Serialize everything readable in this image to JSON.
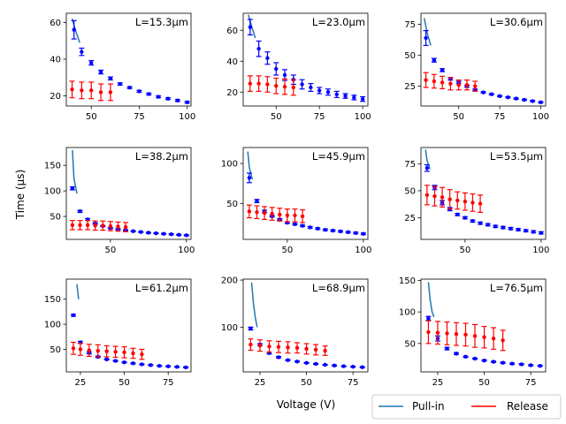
{
  "figure": {
    "ylabel": "Time (μs)",
    "xlabel": "Voltage (V)",
    "legend": {
      "placement": "bottom-right",
      "items": [
        {
          "label": "Pull-in",
          "color": "#1f77b4"
        },
        {
          "label": "Release",
          "color": "#ff0000"
        }
      ]
    }
  },
  "chart_data": [
    {
      "type": "line",
      "title": "L=15.3μm",
      "xlim": [
        37,
        102
      ],
      "ylim": [
        14.5,
        65
      ],
      "xticks": [
        50,
        75,
        100
      ],
      "yticks": [
        20,
        40,
        60
      ],
      "series": [
        {
          "name": "Pull-in",
          "kind": "line",
          "color": "#1f77b4",
          "x": [
            40,
            42,
            44
          ],
          "y": [
            62,
            55,
            49
          ]
        },
        {
          "name": "Pull-in",
          "kind": "errorbar",
          "color": "#0000ff",
          "x": [
            41,
            45,
            50,
            55,
            60,
            65,
            70,
            75,
            80,
            85,
            90,
            95,
            100
          ],
          "y": [
            56,
            44,
            38,
            33,
            29.5,
            26.5,
            24.5,
            22.5,
            21,
            19.5,
            18.5,
            17.5,
            16.5
          ],
          "err": [
            5,
            2,
            1.2,
            1,
            0.8,
            0.6,
            0.5,
            0.5,
            0.5,
            0.5,
            0.5,
            0.5,
            0.5
          ]
        },
        {
          "name": "Release",
          "kind": "errorbar",
          "color": "#ff0000",
          "x": [
            40,
            45,
            50,
            55,
            60
          ],
          "y": [
            23.5,
            23,
            23,
            22,
            22
          ],
          "err": [
            4.5,
            4.5,
            4.5,
            4.5,
            4.5
          ]
        }
      ]
    },
    {
      "type": "line",
      "title": "L=23.0μm",
      "xlim": [
        31,
        103
      ],
      "ylim": [
        11,
        71
      ],
      "xticks": [
        50,
        75,
        100
      ],
      "yticks": [
        20,
        40,
        60
      ],
      "series": [
        {
          "name": "Pull-in",
          "kind": "line",
          "color": "#1f77b4",
          "x": [
            34,
            36,
            38
          ],
          "y": [
            70,
            62,
            55
          ]
        },
        {
          "name": "Pull-in",
          "kind": "errorbar",
          "color": "#0000ff",
          "x": [
            35,
            40,
            45,
            50,
            55,
            60,
            65,
            70,
            75,
            80,
            85,
            90,
            95,
            100
          ],
          "y": [
            62,
            48,
            42,
            35,
            31,
            28,
            25,
            23,
            21,
            20,
            18.5,
            17.5,
            16.5,
            15.5
          ],
          "err": [
            5,
            5,
            4,
            4,
            3.5,
            3,
            3,
            2.5,
            2,
            2,
            2,
            1.5,
            1.5,
            1.5
          ]
        },
        {
          "name": "Release",
          "kind": "errorbar",
          "color": "#ff0000",
          "x": [
            35,
            40,
            45,
            50,
            55,
            60
          ],
          "y": [
            25.5,
            25.5,
            25,
            24,
            23.5,
            23
          ],
          "err": [
            5,
            5,
            5,
            5,
            5,
            5
          ]
        }
      ]
    },
    {
      "type": "line",
      "title": "L=30.6μm",
      "xlim": [
        27,
        103
      ],
      "ylim": [
        9,
        84
      ],
      "xticks": [
        50,
        75,
        100
      ],
      "yticks": [
        25,
        50,
        75
      ],
      "series": [
        {
          "name": "Pull-in",
          "kind": "line",
          "color": "#1f77b4",
          "x": [
            29,
            31,
            33
          ],
          "y": [
            80,
            67,
            58
          ]
        },
        {
          "name": "Pull-in",
          "kind": "errorbar",
          "color": "#0000ff",
          "x": [
            30,
            35,
            40,
            45,
            50,
            55,
            60,
            65,
            70,
            75,
            80,
            85,
            90,
            95,
            100
          ],
          "y": [
            64,
            46,
            38,
            31,
            28,
            25,
            22,
            20,
            18.5,
            17,
            16,
            15,
            14,
            13,
            12
          ],
          "err": [
            6,
            1.5,
            1.2,
            1,
            1,
            0.8,
            0.7,
            0.6,
            0.5,
            0.5,
            0.5,
            0.5,
            0.5,
            0.5,
            0.5
          ]
        },
        {
          "name": "Release",
          "kind": "errorbar",
          "color": "#ff0000",
          "x": [
            30,
            35,
            40,
            45,
            50,
            55,
            60
          ],
          "y": [
            30,
            29,
            28,
            27,
            26,
            26,
            25
          ],
          "err": [
            6,
            5.5,
            5,
            5,
            4,
            4,
            4
          ]
        }
      ]
    },
    {
      "type": "line",
      "title": "L=38.2μm",
      "xlim": [
        21,
        103
      ],
      "ylim": [
        5,
        185
      ],
      "xticks": [
        50,
        100
      ],
      "yticks": [
        50,
        100,
        150
      ],
      "series": [
        {
          "name": "Pull-in",
          "kind": "line",
          "color": "#1f77b4",
          "x": [
            25,
            26,
            28
          ],
          "y": [
            180,
            125,
            95
          ]
        },
        {
          "name": "Pull-in",
          "kind": "errorbar",
          "color": "#0000ff",
          "x": [
            25,
            30,
            35,
            40,
            45,
            50,
            55,
            60,
            65,
            70,
            75,
            80,
            85,
            90,
            95,
            100
          ],
          "y": [
            105,
            60,
            44,
            36,
            31,
            27,
            25,
            23,
            21,
            19.5,
            18,
            17,
            16,
            15,
            14,
            13
          ],
          "err": [
            3,
            2,
            2,
            1.5,
            1,
            1,
            1,
            1,
            1,
            1,
            1,
            1,
            1,
            1,
            1,
            1
          ]
        },
        {
          "name": "Release",
          "kind": "errorbar",
          "color": "#ff0000",
          "x": [
            25,
            30,
            35,
            40,
            45,
            50,
            55,
            60
          ],
          "y": [
            33,
            33,
            33,
            32,
            32,
            31,
            30,
            29
          ],
          "err": [
            9,
            9,
            9,
            9,
            9,
            9,
            9,
            9
          ]
        }
      ]
    },
    {
      "type": "line",
      "title": "L=45.9μm",
      "xlim": [
        21,
        103
      ],
      "ylim": [
        5,
        120
      ],
      "xticks": [
        50,
        100
      ],
      "yticks": [
        50,
        100
      ],
      "series": [
        {
          "name": "Pull-in",
          "kind": "line",
          "color": "#1f77b4",
          "x": [
            24,
            25,
            27
          ],
          "y": [
            115,
            95,
            80
          ]
        },
        {
          "name": "Pull-in",
          "kind": "errorbar",
          "color": "#0000ff",
          "x": [
            25,
            30,
            35,
            40,
            45,
            50,
            55,
            60,
            65,
            70,
            75,
            80,
            85,
            90,
            95,
            100
          ],
          "y": [
            82,
            53,
            40,
            34,
            30,
            26,
            24,
            22,
            20,
            18.5,
            17,
            16,
            15,
            14,
            13,
            12
          ],
          "err": [
            6,
            2,
            1.5,
            1,
            1,
            1,
            1,
            1,
            1,
            1,
            1,
            1,
            1,
            1,
            1,
            1
          ]
        },
        {
          "name": "Release",
          "kind": "errorbar",
          "color": "#ff0000",
          "x": [
            25,
            30,
            35,
            40,
            45,
            50,
            55,
            60
          ],
          "y": [
            40,
            39,
            38,
            37,
            36,
            35,
            35,
            34
          ],
          "err": [
            8,
            8,
            8,
            8,
            8,
            8,
            8,
            8
          ]
        }
      ]
    },
    {
      "type": "line",
      "title": "L=53.5μm",
      "xlim": [
        21,
        103
      ],
      "ylim": [
        5,
        90
      ],
      "xticks": [
        50,
        100
      ],
      "yticks": [
        25,
        50,
        75
      ],
      "series": [
        {
          "name": "Pull-in",
          "kind": "line",
          "color": "#1f77b4",
          "x": [
            24,
            25,
            27
          ],
          "y": [
            88,
            78,
            70
          ]
        },
        {
          "name": "Pull-in",
          "kind": "errorbar",
          "color": "#0000ff",
          "x": [
            25,
            30,
            35,
            40,
            45,
            50,
            55,
            60,
            65,
            70,
            75,
            80,
            85,
            90,
            95,
            100
          ],
          "y": [
            71,
            53,
            39,
            33,
            28,
            25,
            22,
            20,
            18.5,
            17,
            16,
            15,
            14,
            13,
            12,
            11
          ],
          "err": [
            3,
            2,
            2,
            1.5,
            1,
            1,
            1,
            1,
            1,
            1,
            1,
            1,
            1,
            1,
            1,
            1
          ]
        },
        {
          "name": "Release",
          "kind": "errorbar",
          "color": "#ff0000",
          "x": [
            25,
            30,
            35,
            40,
            45,
            50,
            55,
            60
          ],
          "y": [
            46,
            45,
            44,
            42,
            41,
            40,
            39,
            38
          ],
          "err": [
            9,
            9,
            9,
            9,
            8,
            8,
            8,
            8
          ]
        }
      ]
    },
    {
      "type": "line",
      "title": "L=61.2μm",
      "xlim": [
        17,
        88
      ],
      "ylim": [
        5,
        190
      ],
      "xticks": [
        25,
        50,
        75
      ],
      "yticks": [
        50,
        100,
        150
      ],
      "series": [
        {
          "name": "Pull-in",
          "kind": "line",
          "color": "#1f77b4",
          "x": [
            23,
            23.5,
            24
          ],
          "y": [
            180,
            165,
            150
          ]
        },
        {
          "name": "Pull-in",
          "kind": "errorbar",
          "color": "#0000ff",
          "x": [
            21,
            25,
            30,
            35,
            40,
            45,
            50,
            55,
            60,
            65,
            70,
            75,
            80,
            85
          ],
          "y": [
            118,
            64,
            43,
            35,
            30,
            27,
            24,
            22,
            20,
            18.5,
            17,
            16,
            15,
            14
          ],
          "err": [
            2,
            2,
            2,
            1.5,
            1,
            1,
            1,
            1,
            1,
            1,
            1,
            1,
            1,
            1
          ]
        },
        {
          "name": "Release",
          "kind": "errorbar",
          "color": "#ff0000",
          "x": [
            21,
            25,
            30,
            35,
            40,
            45,
            50,
            55,
            60
          ],
          "y": [
            52,
            50,
            48,
            47,
            46,
            45,
            44,
            42,
            40
          ],
          "err": [
            12,
            12,
            12,
            12,
            11,
            11,
            11,
            10,
            10
          ]
        }
      ]
    },
    {
      "type": "line",
      "title": "L=68.9μm",
      "xlim": [
        16,
        83
      ],
      "ylim": [
        5,
        202
      ],
      "xticks": [
        25,
        50,
        75
      ],
      "yticks": [
        100,
        200
      ],
      "series": [
        {
          "name": "Pull-in",
          "kind": "line",
          "color": "#1f77b4",
          "x": [
            20.5,
            21.5,
            22.5,
            23.5
          ],
          "y": [
            195,
            150,
            120,
            100
          ]
        },
        {
          "name": "Pull-in",
          "kind": "errorbar",
          "color": "#0000ff",
          "x": [
            20,
            25,
            30,
            35,
            40,
            45,
            50,
            55,
            60,
            65,
            70,
            75,
            80
          ],
          "y": [
            97,
            63,
            45,
            36,
            30,
            27,
            24,
            22,
            20,
            18.5,
            17,
            16,
            15
          ],
          "err": [
            3,
            2,
            2,
            1.5,
            1,
            1,
            1,
            1,
            1,
            1,
            1,
            1,
            1
          ]
        },
        {
          "name": "Release",
          "kind": "errorbar",
          "color": "#ff0000",
          "x": [
            20,
            25,
            30,
            35,
            40,
            45,
            50,
            55,
            60
          ],
          "y": [
            63,
            61,
            59,
            58,
            57,
            56,
            54,
            52,
            50
          ],
          "err": [
            12,
            12,
            12,
            12,
            12,
            11,
            11,
            11,
            10
          ]
        }
      ]
    },
    {
      "type": "line",
      "title": "L=76.5μm",
      "xlim": [
        16,
        83
      ],
      "ylim": [
        5,
        152
      ],
      "xticks": [
        25,
        50,
        75
      ],
      "yticks": [
        50,
        100,
        150
      ],
      "series": [
        {
          "name": "Pull-in",
          "kind": "line",
          "color": "#1f77b4",
          "x": [
            20,
            21,
            22,
            23
          ],
          "y": [
            147,
            118,
            100,
            92
          ]
        },
        {
          "name": "Pull-in",
          "kind": "errorbar",
          "color": "#0000ff",
          "x": [
            20,
            25,
            30,
            35,
            40,
            45,
            50,
            55,
            60,
            65,
            70,
            75,
            80
          ],
          "y": [
            90,
            58,
            42,
            34,
            29,
            26,
            23,
            21,
            19.5,
            18,
            17,
            15.5,
            14.5
          ],
          "err": [
            3,
            4,
            2,
            1.5,
            1,
            1,
            1,
            1,
            1,
            1,
            1,
            1,
            1
          ]
        },
        {
          "name": "Release",
          "kind": "errorbar",
          "color": "#ff0000",
          "x": [
            20,
            25,
            30,
            35,
            40,
            45,
            50,
            55,
            60
          ],
          "y": [
            68,
            67,
            66,
            65,
            64,
            62,
            60,
            58,
            55
          ],
          "err": [
            18,
            18,
            18,
            18,
            18,
            18,
            17,
            17,
            16
          ]
        }
      ]
    }
  ]
}
